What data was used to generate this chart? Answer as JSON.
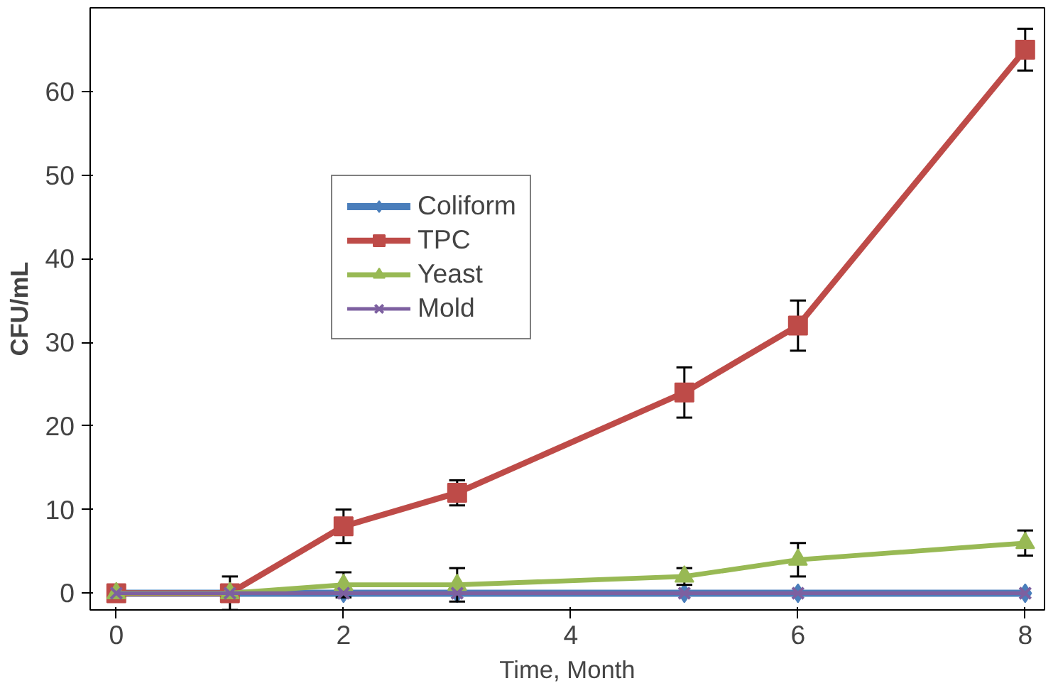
{
  "chart_data": {
    "type": "line",
    "xlabel": "Time, Month",
    "ylabel": "CFU/mL",
    "x": [
      0,
      1,
      2,
      3,
      5,
      6,
      8
    ],
    "xlim": [
      -0.23,
      8.17
    ],
    "ylim": [
      -2,
      70
    ],
    "xticks": [
      0,
      2,
      4,
      6,
      8
    ],
    "yticks": [
      0,
      10,
      20,
      30,
      40,
      50,
      60
    ],
    "grid": false,
    "legend": "top left",
    "series": [
      {
        "name": "Coliform",
        "color": "#4a7ebb",
        "marker": "diamond",
        "values": [
          0,
          0,
          0,
          0,
          0,
          0,
          0
        ]
      },
      {
        "name": "TPC",
        "color": "#be4b48",
        "marker": "square",
        "values": [
          0,
          0,
          8,
          12,
          24,
          32,
          65
        ],
        "errors": [
          null,
          2,
          2,
          1.5,
          3,
          3,
          2.5
        ]
      },
      {
        "name": "Yeast",
        "color": "#98b954",
        "marker": "triangle",
        "values": [
          0,
          0,
          1,
          1,
          2,
          4,
          6
        ],
        "errors": [
          null,
          null,
          1.5,
          2,
          1,
          2,
          1.5
        ]
      },
      {
        "name": "Mold",
        "color": "#7d60a0",
        "marker": "cross",
        "values": [
          0,
          0,
          0,
          0,
          0,
          0,
          0
        ]
      }
    ]
  }
}
